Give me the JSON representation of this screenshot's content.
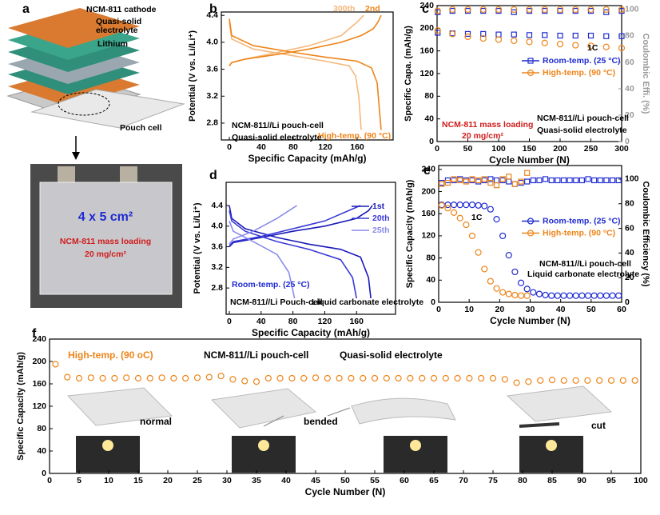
{
  "illustration": {
    "panel": "a",
    "layer_labels": [
      "NCM-811 cathode",
      "Quasi-solid",
      "electrolyte",
      "Lithium"
    ],
    "pouch_label": "Pouch cell",
    "photo_size": "4 x 5 cm²",
    "photo_loading": [
      "NCM-811 mass loading",
      "20 mg/cm²"
    ]
  },
  "chart_data": [
    {
      "type": "line",
      "panel": "b",
      "xlabel": "Specific Capacity (mAh/g)",
      "ylabel": "Potential (V vs. Li/Li⁺)",
      "xlim": [
        -10,
        205
      ],
      "xticks": [
        0,
        40,
        80,
        120,
        160
      ],
      "ylim": [
        2.55,
        4.45
      ],
      "yticks": [
        2.8,
        3.2,
        3.6,
        {
          "value": 4.0,
          "label": "4.0"
        },
        4.4
      ],
      "legend": "top",
      "series": [
        {
          "name": "300th",
          "color": "#f5b87a",
          "line": true,
          "marker": null,
          "x": [
            0,
            3,
            20,
            60,
            100,
            140,
            160,
            168,
            null,
            0,
            3,
            30,
            80,
            120,
            150,
            158,
            162,
            165
          ],
          "values": [
            3.65,
            3.7,
            3.75,
            3.85,
            3.95,
            4.1,
            4.3,
            4.4,
            null,
            4.3,
            4.05,
            3.9,
            3.8,
            3.72,
            3.65,
            3.5,
            3.2,
            2.7
          ]
        },
        {
          "name": "2nd",
          "color": "#ee8418",
          "line": true,
          "marker": null,
          "x": [
            0,
            3,
            20,
            60,
            100,
            140,
            165,
            180,
            186,
            190,
            null,
            0,
            3,
            30,
            80,
            120,
            160,
            178,
            185,
            190
          ],
          "values": [
            3.65,
            3.7,
            3.75,
            3.82,
            3.9,
            4.0,
            4.1,
            4.2,
            4.3,
            4.4,
            null,
            4.35,
            4.1,
            3.95,
            3.85,
            3.78,
            3.72,
            3.62,
            3.4,
            2.7
          ]
        }
      ],
      "annotations": [
        {
          "text": "NCM-811//Li pouch-cell",
          "color": "#000000"
        },
        {
          "text": "Quasi-solid electrolyte",
          "color": "#000000"
        },
        {
          "text": "High-temp. (90 °C)",
          "color": "#ee8418"
        }
      ]
    },
    {
      "type": "scatter",
      "panel": "c",
      "xlabel": "Cycle Number (N)",
      "ylabel": "Specific Capa. (mAh/g)",
      "y2label": "Coulombic Effi. (%)",
      "y2color": "#999999",
      "xlim": [
        0,
        300
      ],
      "xticks": [
        0,
        50,
        100,
        150,
        200,
        250,
        300
      ],
      "ylim": [
        0,
        240
      ],
      "yticks": [
        0,
        40,
        80,
        120,
        160,
        200,
        240
      ],
      "y2lim": [
        0,
        103
      ],
      "y2ticks": [
        0,
        20,
        40,
        60,
        80,
        100
      ],
      "legend": "center right",
      "series": [
        {
          "name": "Room-temp. (25 °C)",
          "color": "#1f2bd1",
          "line": false,
          "marker": "square",
          "x": [
            1,
            25,
            50,
            75,
            100,
            125,
            150,
            175,
            200,
            225,
            250,
            275,
            300
          ],
          "values": [
            192,
            191,
            190,
            190,
            189,
            189,
            188,
            188,
            187,
            187,
            187,
            186,
            186
          ]
        },
        {
          "name": "High-temp. (90 °C)",
          "color": "#ee8418",
          "line": false,
          "marker": "circle",
          "x": [
            1,
            25,
            50,
            75,
            100,
            125,
            150,
            175,
            200,
            225,
            250,
            275,
            300
          ],
          "values": [
            196,
            190,
            185,
            182,
            180,
            178,
            176,
            174,
            172,
            170,
            169,
            167,
            165
          ]
        },
        {
          "color": "#1f2bd1",
          "line": false,
          "marker": "square",
          "axis": "y2",
          "x": [
            1,
            25,
            50,
            75,
            100,
            125,
            150,
            175,
            200,
            225,
            250,
            275,
            300
          ],
          "values": [
            98,
            99,
            99,
            99,
            99,
            98,
            99,
            99,
            99,
            99,
            99,
            98,
            99
          ]
        },
        {
          "color": "#ee8418",
          "line": false,
          "marker": "circle",
          "axis": "y2",
          "x": [
            1,
            25,
            50,
            75,
            100,
            125,
            150,
            175,
            200,
            225,
            250,
            275,
            300
          ],
          "values": [
            99,
            100,
            100,
            100,
            100,
            100,
            100,
            100,
            100,
            100,
            100,
            100,
            100
          ]
        }
      ],
      "annotations": [
        {
          "text": "1C",
          "color": "#000000"
        },
        {
          "text": "NCM-811//Li pouch-cell",
          "color": "#000000"
        },
        {
          "text": "Quasi-solid electrolyte",
          "color": "#000000"
        },
        {
          "text": "NCM-811 mass loading",
          "color": "#d01c1c"
        },
        {
          "text": "20 mg/cm²",
          "color": "#d01c1c"
        }
      ]
    },
    {
      "type": "line",
      "panel": "d",
      "xlabel": "Specific Capacity (mAh/g)",
      "ylabel": "Potential (V vs. Li/Li⁺)",
      "xlim": [
        -4,
        209
      ],
      "xticks": [
        0,
        40,
        80,
        120,
        160
      ],
      "ylim": [
        2.29,
        4.85
      ],
      "yticks": [
        2.8,
        3.2,
        3.6,
        {
          "value": 4.0,
          "label": "4.0"
        },
        4.4
      ],
      "legend": "upper right",
      "series": [
        {
          "name": "1st",
          "color": "#1a1ab8",
          "line": true,
          "marker": null,
          "x": [
            0,
            5,
            40,
            80,
            120,
            160,
            175,
            180,
            null,
            0,
            3,
            20,
            60,
            100,
            140,
            165,
            175,
            178
          ],
          "values": [
            3.6,
            3.68,
            3.78,
            3.9,
            4.0,
            4.15,
            4.3,
            4.4,
            null,
            4.4,
            4.15,
            3.95,
            3.78,
            3.65,
            3.55,
            3.4,
            3.0,
            2.6
          ]
        },
        {
          "name": "20th",
          "color": "#3b3bd8",
          "line": true,
          "marker": null,
          "x": [
            0,
            5,
            40,
            80,
            120,
            150,
            165,
            null,
            0,
            3,
            20,
            60,
            100,
            140,
            155,
            160
          ],
          "values": [
            3.62,
            3.7,
            3.8,
            3.95,
            4.1,
            4.3,
            4.4,
            null,
            4.3,
            4.1,
            3.9,
            3.7,
            3.55,
            3.35,
            3.0,
            2.6
          ]
        },
        {
          "name": "25th",
          "color": "#8a8aee",
          "line": true,
          "marker": null,
          "x": [
            0,
            5,
            30,
            60,
            85,
            null,
            0,
            5,
            30,
            60,
            75,
            82
          ],
          "values": [
            3.65,
            3.75,
            3.9,
            4.15,
            4.4,
            null,
            4.1,
            3.9,
            3.7,
            3.45,
            3.1,
            2.6
          ]
        }
      ],
      "annotations": [
        {
          "text": "Room-temp. (25 °C)",
          "color": "#1f2bd1"
        },
        {
          "text": "NCM-811//Li Pouch-cell",
          "color": "#000000"
        },
        {
          "text": "Liquid carbonate electrolyte",
          "color": "#000000"
        }
      ]
    },
    {
      "type": "scatter",
      "panel": "e",
      "xlabel": "Cycle Number (N)",
      "ylabel": "Specific Capacity (mAh/g)",
      "y2label": "Coulombic Efficiency (%)",
      "y2color": "#000000",
      "xlim": [
        0,
        60
      ],
      "xticks": [
        0,
        10,
        20,
        30,
        40,
        50,
        60
      ],
      "ylim": [
        0,
        247
      ],
      "yticks": [
        0,
        40,
        80,
        120,
        160,
        200,
        240
      ],
      "y2lim": [
        0,
        111
      ],
      "y2ticks": [
        0,
        20,
        40,
        60,
        80,
        100
      ],
      "legend": "center right",
      "series": [
        {
          "name": "Room-temp. (25 °C)",
          "color": "#1f2bd1",
          "line": false,
          "marker": "circle",
          "x": [
            1,
            3,
            5,
            7,
            9,
            11,
            13,
            15,
            17,
            19,
            21,
            23,
            25,
            27,
            29,
            31,
            33,
            35,
            37,
            39,
            41,
            43,
            45,
            47,
            49,
            51,
            53,
            55,
            57,
            59
          ],
          "values": [
            176,
            176,
            176,
            176,
            176,
            176,
            175,
            174,
            168,
            150,
            120,
            85,
            55,
            35,
            24,
            18,
            15,
            13,
            12,
            12,
            12,
            12,
            12,
            12,
            12,
            12,
            12,
            12,
            12,
            12
          ]
        },
        {
          "name": "High-temp. (90 °C)",
          "color": "#ee8418",
          "line": false,
          "marker": "circle",
          "x": [
            1,
            3,
            5,
            7,
            9,
            11,
            13,
            15,
            17,
            19,
            21,
            23,
            25,
            27,
            29
          ],
          "values": [
            175,
            170,
            162,
            152,
            140,
            120,
            90,
            60,
            38,
            25,
            18,
            15,
            13,
            12,
            12
          ]
        },
        {
          "color": "#1f2bd1",
          "line": false,
          "marker": "square",
          "axis": "y2",
          "x": [
            1,
            3,
            5,
            7,
            9,
            11,
            13,
            15,
            17,
            19,
            21,
            23,
            25,
            27,
            29,
            31,
            33,
            35,
            37,
            39,
            41,
            43,
            45,
            47,
            49,
            51,
            53,
            55,
            57,
            59
          ],
          "values": [
            97,
            99,
            99,
            100,
            99,
            99,
            98,
            99,
            100,
            99,
            99,
            98,
            96,
            97,
            98,
            99,
            99,
            100,
            99,
            99,
            99,
            99,
            99,
            99,
            100,
            99,
            99,
            99,
            99,
            99
          ]
        },
        {
          "color": "#ee8418",
          "line": false,
          "marker": "square",
          "axis": "y2",
          "x": [
            1,
            3,
            5,
            7,
            9,
            11,
            13,
            15,
            17,
            19,
            21,
            23,
            25,
            27,
            29
          ],
          "values": [
            96,
            97,
            100,
            99,
            98,
            100,
            99,
            100,
            97,
            95,
            100,
            102,
            96,
            98,
            105
          ]
        }
      ],
      "annotations": [
        {
          "text": "1C",
          "color": "#000000"
        },
        {
          "text": "NCM-811//Li pouch-cell",
          "color": "#000000"
        },
        {
          "text": "Liquid carbonate electrolyte",
          "color": "#000000"
        }
      ]
    },
    {
      "type": "scatter",
      "panel": "f",
      "xlabel": "Cycle Number (N)",
      "ylabel": "Specific Capacity (mAh/g)",
      "xlim": [
        0,
        100
      ],
      "xticks": [
        0,
        5,
        10,
        15,
        20,
        25,
        30,
        35,
        40,
        45,
        50,
        55,
        60,
        65,
        70,
        75,
        80,
        85,
        90,
        95,
        100
      ],
      "ylim": [
        0,
        240
      ],
      "yticks": [
        0,
        40,
        80,
        120,
        160,
        200,
        240
      ],
      "series": [
        {
          "color": "#ee8418",
          "line": false,
          "marker": "circle",
          "x": [
            1,
            3,
            5,
            7,
            9,
            11,
            13,
            15,
            17,
            19,
            21,
            23,
            25,
            27,
            29,
            31,
            33,
            35,
            37,
            39,
            41,
            43,
            45,
            47,
            49,
            51,
            53,
            55,
            57,
            59,
            61,
            63,
            65,
            67,
            69,
            71,
            73,
            75,
            77,
            79,
            81,
            83,
            85,
            87,
            89,
            91,
            93,
            95,
            97,
            99
          ],
          "values": [
            195,
            172,
            170,
            171,
            170,
            170,
            171,
            170,
            170,
            171,
            170,
            170,
            171,
            172,
            174,
            168,
            165,
            164,
            170,
            170,
            170,
            170,
            171,
            170,
            170,
            170,
            170,
            170,
            170,
            170,
            170,
            170,
            170,
            170,
            170,
            170,
            170,
            170,
            168,
            162,
            164,
            166,
            167,
            166,
            166,
            166,
            166,
            166,
            166,
            166
          ]
        }
      ],
      "annotations": [
        {
          "text": "High-temp. (90 oC)",
          "color": "#ee8418"
        },
        {
          "text": "NCM-811//Li pouch-cell",
          "color": "#000000"
        },
        {
          "text": "Quasi-solid electrolyte",
          "color": "#000000"
        },
        {
          "text": "normal",
          "color": "#000000"
        },
        {
          "text": "bended",
          "color": "#000000"
        },
        {
          "text": "cut",
          "color": "#000000"
        }
      ]
    }
  ]
}
